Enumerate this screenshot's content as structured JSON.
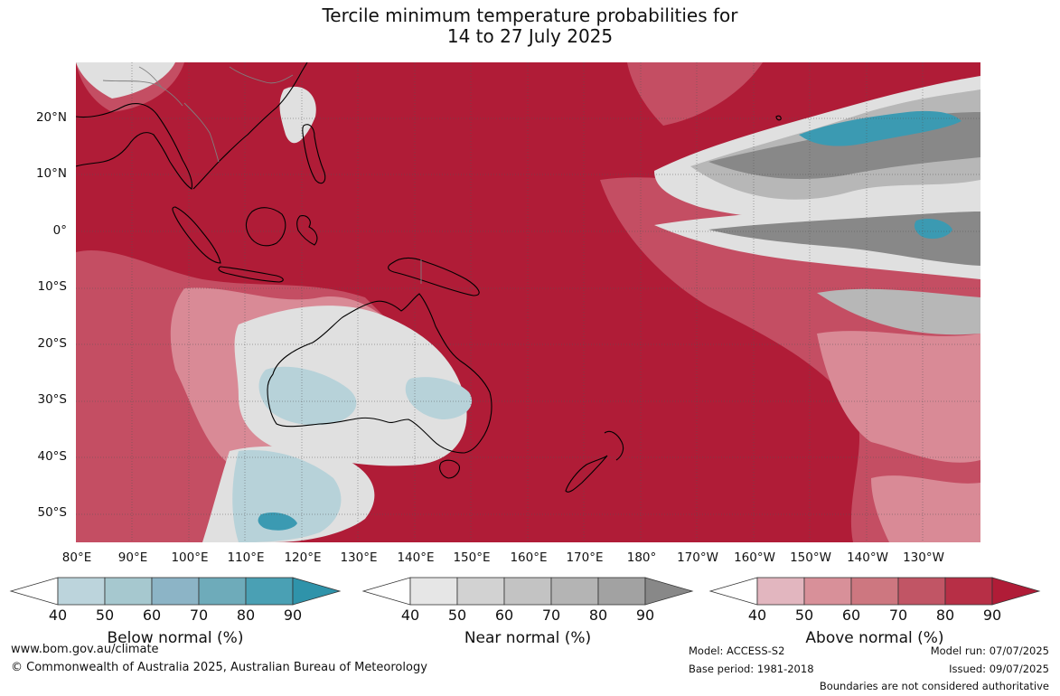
{
  "title": {
    "line1": "Tercile minimum temperature probabilities for",
    "line2": "14 to 27 July 2025"
  },
  "lat_labels": [
    "20°N",
    "10°N",
    "0°",
    "10°S",
    "20°S",
    "30°S",
    "40°S",
    "50°S"
  ],
  "lon_labels": [
    "80°E",
    "90°E",
    "100°E",
    "110°E",
    "120°E",
    "130°E",
    "140°E",
    "150°E",
    "160°E",
    "170°E",
    "180°",
    "170°W",
    "160°W",
    "150°W",
    "140°W",
    "130°W"
  ],
  "colorbars": [
    {
      "label": "Below normal (%)",
      "ticks": [
        "40",
        "50",
        "60",
        "70",
        "80",
        "90"
      ],
      "colors": [
        "#ffffff",
        "#bcd4dc",
        "#a6c8cf",
        "#8cb4c6",
        "#6eabba",
        "#4aa0b4",
        "#2f93aa"
      ]
    },
    {
      "label": "Near normal (%)",
      "ticks": [
        "40",
        "50",
        "60",
        "70",
        "80",
        "90"
      ],
      "colors": [
        "#ffffff",
        "#e6e6e6",
        "#d2d2d2",
        "#c3c3c3",
        "#b4b4b4",
        "#a2a2a2",
        "#888888"
      ]
    },
    {
      "label": "Above normal (%)",
      "ticks": [
        "40",
        "50",
        "60",
        "70",
        "80",
        "90"
      ],
      "colors": [
        "#ffffff",
        "#e2b6bf",
        "#d89099",
        "#cd7780",
        "#c15565",
        "#b72f46",
        "#b01c37"
      ]
    }
  ],
  "map_colors": {
    "ocean_above_90": "#b01c37",
    "above_70": "#c44e63",
    "above_50": "#d98a96",
    "near_light": "#e0e0e0",
    "near_mid": "#b7b7b7",
    "near_dark": "#888888",
    "below_light": "#b7d2d9",
    "below_dark": "#3b9ab2",
    "coast": "#000000",
    "border": "#808080"
  },
  "footer": {
    "website": "www.bom.gov.au/climate",
    "copyright": "© Commonwealth of Australia 2025, Australian Bureau of Meteorology",
    "model": "Model: ACCESS-S2",
    "base_period": "Base period: 1981-2018",
    "model_run": "Model run: 07/07/2025",
    "issued": "Issued: 09/07/2025",
    "disclaimer": "Boundaries are not considered authoritative"
  }
}
